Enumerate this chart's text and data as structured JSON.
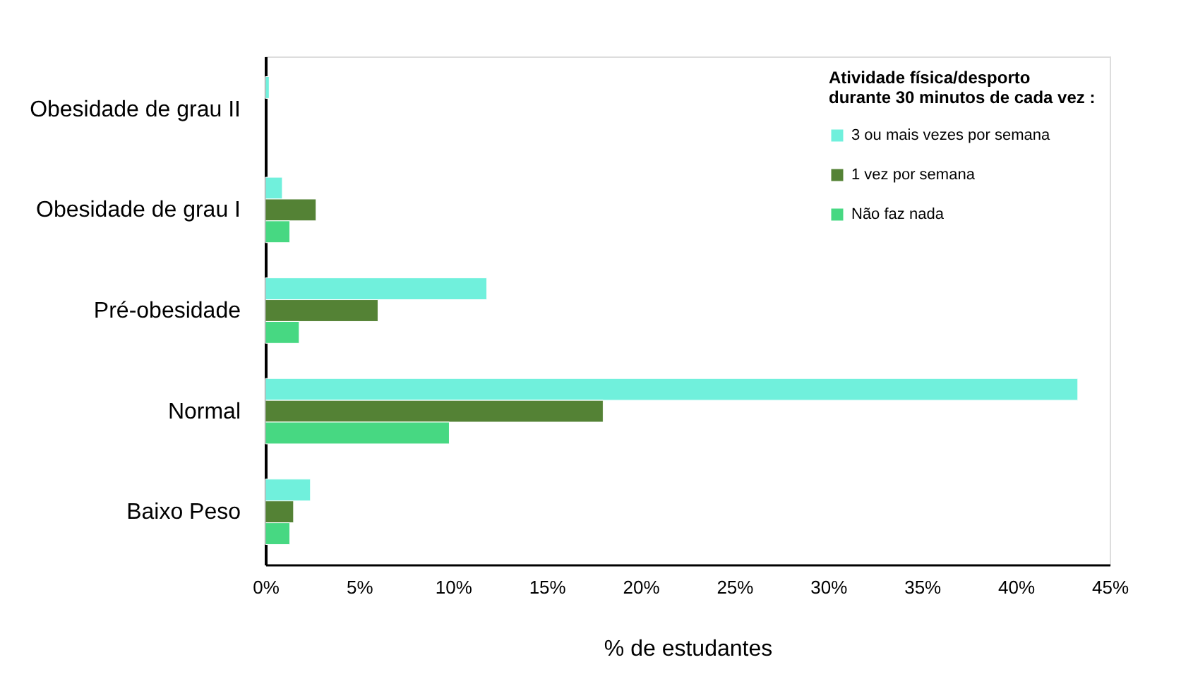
{
  "chart_data": {
    "type": "bar",
    "orientation": "horizontal",
    "xlabel": "% de estudantes",
    "legend_title": "Atividade física/desporto\ndurante 30 minutos de cada vez :",
    "legend": "top right",
    "categories": [
      "Obesidade de grau II",
      "Obesidade de grau I",
      "Pré-obesidade",
      "Normal",
      "Baixo Peso"
    ],
    "series": [
      {
        "name": "3 ou mais vezes por semana",
        "color": "#70f0dc",
        "values": [
          0.2,
          0.9,
          11.8,
          43.3,
          2.4
        ]
      },
      {
        "name": "1 vez por semana",
        "color": "#548235",
        "values": [
          null,
          2.7,
          6.0,
          18.0,
          1.5
        ]
      },
      {
        "name": "Não faz nada",
        "color": "#47d882",
        "values": [
          null,
          1.3,
          1.8,
          9.8,
          1.3
        ]
      }
    ],
    "xlim": [
      0,
      45
    ],
    "xticks": [
      {
        "value": 0,
        "label": "0%"
      },
      {
        "value": 5,
        "label": "5%"
      },
      {
        "value": 10,
        "label": "10%"
      },
      {
        "value": 15,
        "label": "15%"
      },
      {
        "value": 20,
        "label": "20%"
      },
      {
        "value": 25,
        "label": "25%"
      },
      {
        "value": 30,
        "label": "30%"
      },
      {
        "value": 35,
        "label": "35%"
      },
      {
        "value": 40,
        "label": "40%"
      },
      {
        "value": 45,
        "label": "45%"
      }
    ],
    "grid": false
  }
}
